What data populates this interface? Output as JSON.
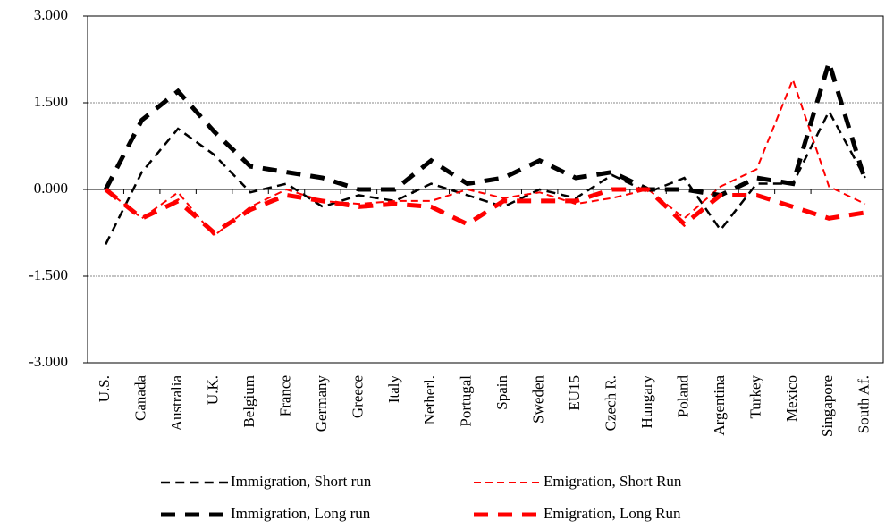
{
  "chart_data": {
    "type": "line",
    "categories": [
      "U.S.",
      "Canada",
      "Australia",
      "U.K.",
      "Belgium",
      "France",
      "Germany",
      "Greece",
      "Italy",
      "Netherl.",
      "Portugal",
      "Spain",
      "Sweden",
      "EU15",
      "Czech R.",
      "Hungary",
      "Poland",
      "Argentina",
      "Turkey",
      "Mexico",
      "Singapore",
      "South Af."
    ],
    "series": [
      {
        "name": "Immigration, Short run",
        "color": "#000000",
        "line_style": "dashed",
        "line_width": 2.5,
        "values": [
          -0.95,
          0.3,
          1.05,
          0.6,
          -0.05,
          0.1,
          -0.3,
          -0.1,
          -0.2,
          0.1,
          -0.1,
          -0.3,
          0.0,
          -0.15,
          0.25,
          -0.05,
          0.2,
          -0.7,
          0.1,
          0.1,
          1.35,
          0.2
        ]
      },
      {
        "name": "Emigration, Short Run",
        "color": "#ff0000",
        "line_style": "dashed",
        "line_width": 2,
        "values": [
          0.0,
          -0.5,
          -0.05,
          -0.8,
          -0.3,
          0.0,
          -0.2,
          -0.25,
          -0.2,
          -0.2,
          0.0,
          -0.15,
          -0.05,
          -0.25,
          -0.15,
          0.0,
          -0.5,
          0.05,
          0.35,
          1.9,
          0.05,
          -0.25
        ]
      },
      {
        "name": "Immigration, Long run",
        "color": "#000000",
        "line_style": "dashed",
        "line_width": 5,
        "values": [
          0.0,
          1.2,
          1.7,
          1.0,
          0.4,
          0.3,
          0.2,
          0.0,
          0.0,
          0.5,
          0.1,
          0.2,
          0.5,
          0.2,
          0.3,
          0.0,
          0.0,
          -0.1,
          0.2,
          0.1,
          2.2,
          0.15
        ]
      },
      {
        "name": "Emigration, Long Run",
        "color": "#ff0000",
        "line_style": "dashed",
        "line_width": 5,
        "values": [
          0.0,
          -0.5,
          -0.2,
          -0.75,
          -0.35,
          -0.1,
          -0.2,
          -0.3,
          -0.25,
          -0.3,
          -0.6,
          -0.2,
          -0.2,
          -0.2,
          0.0,
          0.0,
          -0.6,
          -0.1,
          -0.1,
          -0.3,
          -0.5,
          -0.4
        ]
      }
    ],
    "ylim": [
      -3,
      3
    ],
    "yticks": [
      {
        "value": 3,
        "label": "3.000"
      },
      {
        "value": 1.5,
        "label": "1.500"
      },
      {
        "value": 0,
        "label": "0.000"
      },
      {
        "value": -1.5,
        "label": "-1.500"
      },
      {
        "value": -3,
        "label": "-3.000"
      }
    ],
    "grid": true,
    "legend": "bottom"
  }
}
